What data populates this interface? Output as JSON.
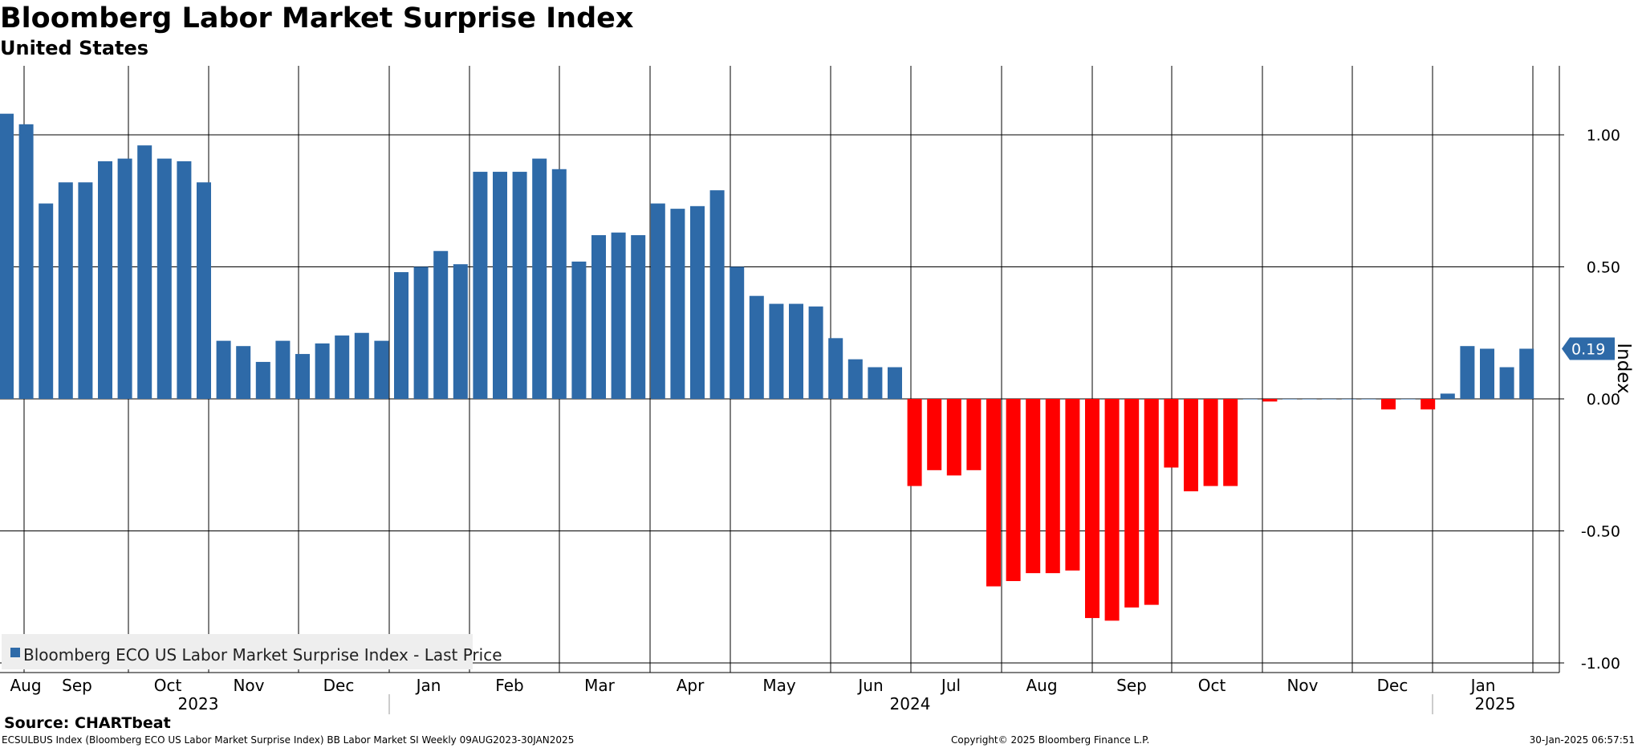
{
  "chart_data": {
    "type": "bar",
    "title": "Bloomberg Labor Market Surprise Index",
    "subtitle": "United States",
    "ylabel": "Index",
    "ylim": [
      -1.05,
      1.27
    ],
    "yticks": [
      1.0,
      0.5,
      0.0,
      -0.5,
      -1.0
    ],
    "ytick_labels": [
      "1.00",
      "0.50",
      "0.00",
      "-0.50",
      "-1.00"
    ],
    "last_value_label": "0.19",
    "last_value": 0.19,
    "legend": "Bloomberg ECO US Labor Market Surprise Index - Last Price",
    "legend_position": "bottom-left",
    "positive_color": "#2e6aa8",
    "negative_color": "#ff0000",
    "month_labels": [
      "Aug",
      "Sep",
      "Oct",
      "Nov",
      "Dec",
      "Jan",
      "Feb",
      "Mar",
      "Apr",
      "May",
      "Jun",
      "Jul",
      "Aug",
      "Sep",
      "Oct",
      "Nov",
      "Dec",
      "Jan"
    ],
    "year_labels": [
      "2023",
      "2024",
      "2025"
    ],
    "values": [
      1.08,
      1.04,
      0.74,
      0.82,
      0.82,
      0.9,
      0.91,
      0.96,
      0.91,
      0.9,
      0.82,
      0.22,
      0.2,
      0.14,
      0.22,
      0.17,
      0.21,
      0.24,
      0.25,
      0.22,
      0.48,
      0.5,
      0.56,
      0.51,
      0.86,
      0.86,
      0.86,
      0.91,
      0.87,
      0.52,
      0.62,
      0.63,
      0.62,
      0.74,
      0.72,
      0.73,
      0.79,
      0.5,
      0.39,
      0.36,
      0.36,
      0.35,
      0.23,
      0.15,
      0.12,
      0.12,
      -0.33,
      -0.27,
      -0.29,
      -0.27,
      -0.71,
      -0.69,
      -0.66,
      -0.66,
      -0.65,
      -0.83,
      -0.84,
      -0.79,
      -0.78,
      -0.26,
      -0.35,
      -0.33,
      -0.33,
      0.0,
      -0.01,
      0.0,
      0.0,
      0.0,
      0.0,
      0.0,
      -0.04,
      0.0,
      -0.04,
      0.02,
      0.2,
      0.19,
      0.12,
      0.19
    ]
  },
  "source": "Source: CHARTbeat",
  "footer": {
    "left": "ECSULBUS Index (Bloomberg ECO US Labor Market Surprise Index) BB Labor Market SI  Weekly 09AUG2023-30JAN2025",
    "center": "Copyright© 2025 Bloomberg Finance L.P.",
    "right": "30-Jan-2025 06:57:51"
  }
}
